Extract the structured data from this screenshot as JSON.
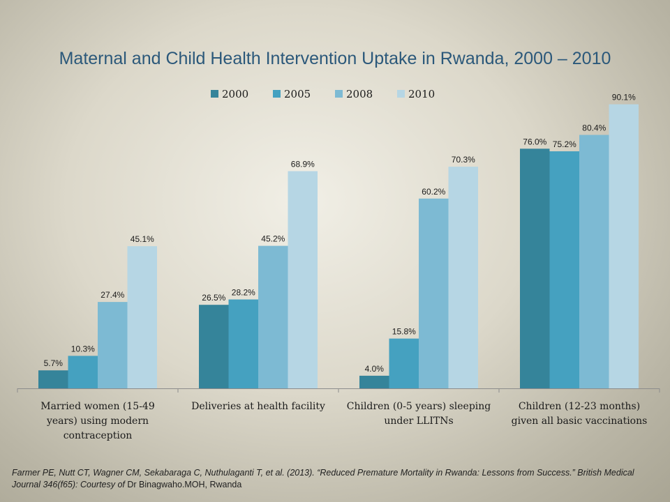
{
  "chart_data": {
    "type": "bar",
    "title": "Maternal and Child Health Intervention Uptake in Rwanda, 2000 – 2010",
    "categories": [
      [
        "Married women (15-49",
        "years) using modern",
        "contraception"
      ],
      [
        "Deliveries at health facility"
      ],
      [
        "Children (0-5 years) sleeping",
        "under LLITNs"
      ],
      [
        "Children (12-23 months)",
        "given all basic vaccinations"
      ]
    ],
    "series": [
      {
        "name": "2000",
        "color": "#35849a",
        "values": [
          5.7,
          26.5,
          4.0,
          76.0
        ],
        "labels": [
          "5.7%",
          "26.5%",
          "4.0%",
          "76.0%"
        ]
      },
      {
        "name": "2005",
        "color": "#45a1c0",
        "values": [
          10.3,
          28.2,
          15.8,
          75.2
        ],
        "labels": [
          "10.3%",
          "28.2%",
          "15.8%",
          "75.2%"
        ]
      },
      {
        "name": "2008",
        "color": "#7dbad3",
        "values": [
          27.4,
          45.2,
          60.2,
          80.4
        ],
        "labels": [
          "27.4%",
          "45.2%",
          "60.2%",
          "80.4%"
        ]
      },
      {
        "name": "2010",
        "color": "#b6d6e4",
        "values": [
          45.1,
          68.9,
          70.3,
          90.1
        ],
        "labels": [
          "45.1%",
          "68.9%",
          "70.3%",
          "90.1%"
        ]
      }
    ],
    "ylim": [
      0,
      92
    ],
    "legend": "top-center",
    "grid": false
  },
  "footnote": {
    "text": "Farmer PE, Nutt CT, Wagner CM, Sekabaraga C, Nuthulaganti T, et al. (2013). “Reduced Premature Mortality in Rwanda: Lessons from Success.” British Medical Journal 346(f65): Courtesy of",
    "credit": "Dr Binagwaho.MOH, Rwanda"
  }
}
